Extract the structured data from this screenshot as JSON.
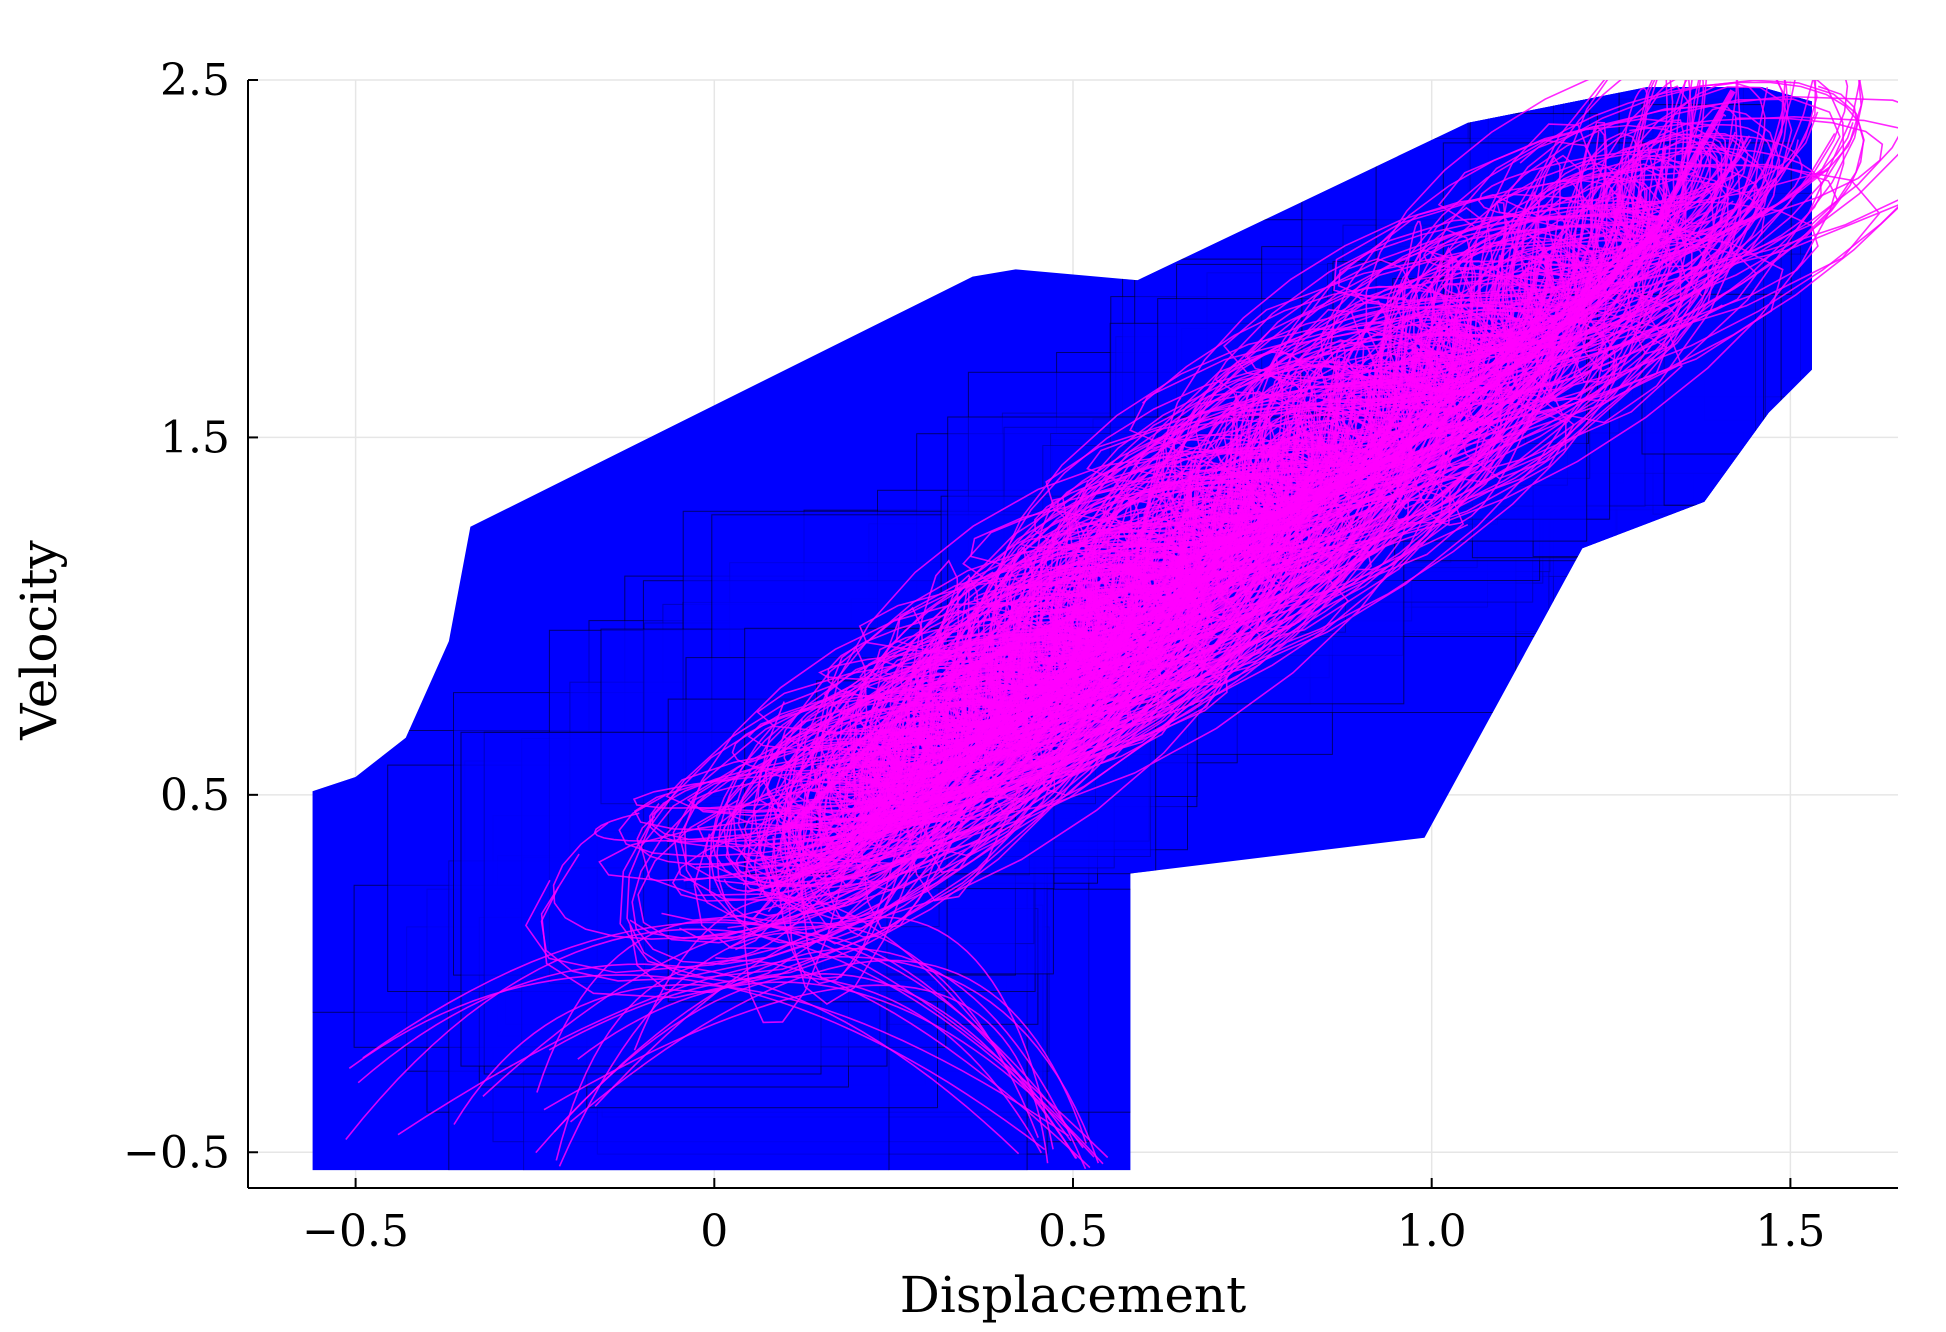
{
  "chart_data": {
    "type": "line",
    "title": "",
    "xlabel": "Displacement",
    "ylabel": "Velocity",
    "xlim": [
      -0.65,
      1.65
    ],
    "ylim": [
      -0.6,
      2.5
    ],
    "x_ticks": [
      -0.5,
      0,
      0.5,
      1.0,
      1.5
    ],
    "x_tick_labels": [
      "−0.5",
      "0",
      "0.5",
      "1.0",
      "1.5"
    ],
    "y_ticks": [
      -0.5,
      0.5,
      1.5,
      2.5
    ],
    "y_tick_labels": [
      "−0.5",
      "0.5",
      "1.5",
      "2.5"
    ],
    "grid": true,
    "legend": "none",
    "colors": {
      "reach_set_fill": "#0000ff",
      "reach_set_edge": "#000000",
      "trajectories": "#ff00ff",
      "grid": "#e6e6e6",
      "axis": "#000000"
    },
    "reach_set_outline": [
      [
        -0.56,
        -0.55
      ],
      [
        0.58,
        -0.55
      ],
      [
        0.58,
        0.28
      ],
      [
        0.99,
        0.38
      ],
      [
        1.21,
        1.19
      ],
      [
        1.38,
        1.32
      ],
      [
        1.47,
        1.57
      ],
      [
        1.53,
        1.69
      ],
      [
        1.53,
        2.44
      ],
      [
        1.46,
        2.48
      ],
      [
        1.3,
        2.48
      ],
      [
        1.05,
        2.38
      ],
      [
        0.59,
        1.94
      ],
      [
        0.42,
        1.97
      ],
      [
        0.36,
        1.95
      ],
      [
        0.28,
        1.87
      ],
      [
        -0.34,
        1.25
      ],
      [
        -0.37,
        0.93
      ],
      [
        -0.43,
        0.66
      ],
      [
        -0.5,
        0.55
      ],
      [
        -0.56,
        0.51
      ]
    ],
    "series": [
      {
        "values": [
          [
            0.1,
            0.4
          ],
          [
            0.3,
            0.8
          ],
          [
            0.55,
            1.05
          ],
          [
            0.75,
            1.25
          ],
          [
            0.95,
            1.45
          ],
          [
            1.15,
            1.75
          ],
          [
            1.3,
            2.05
          ],
          [
            1.42,
            2.47
          ]
        ]
      }
    ]
  }
}
